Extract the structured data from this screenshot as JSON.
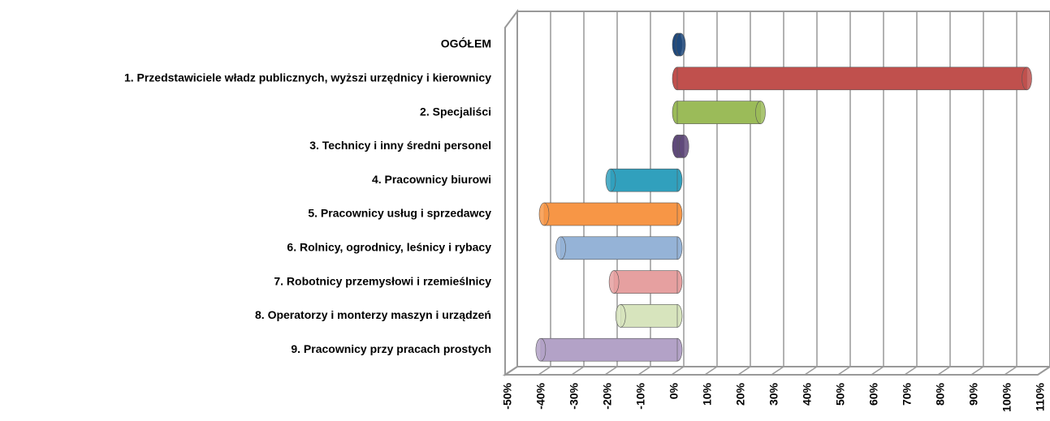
{
  "chart_data": {
    "type": "bar",
    "orientation": "horizontal",
    "categories": [
      "OGÓŁEM",
      "1. Przedstawiciele władz publicznych, wyższi urzędnicy i kierownicy",
      "2. Specjaliści ",
      "3. Technicy i inny średni personel",
      "4. Pracownicy biurowi",
      "5. Pracownicy usług i sprzedawcy",
      "6. Rolnicy, ogrodnicy, leśnicy i rybacy",
      "7. Robotnicy przemysłowi i rzemieślnicy",
      "8. Operatorzy i monterzy maszyn i urządzeń",
      "9. Pracownicy przy pracach prostych"
    ],
    "values": [
      1,
      105,
      25,
      2,
      -20,
      -40,
      -35,
      -19,
      -17,
      -41
    ],
    "colors": [
      "#1f497d",
      "#c0504d",
      "#9bbb59",
      "#604a7b",
      "#31a0bd",
      "#f79646",
      "#95b3d7",
      "#e6a0a0",
      "#d7e4bd",
      "#b3a2c7"
    ],
    "xlim": [
      -50,
      110
    ],
    "xticks": [
      {
        "value": -50,
        "label": "-50%"
      },
      {
        "value": -40,
        "label": "-40%"
      },
      {
        "value": -30,
        "label": "-30%"
      },
      {
        "value": -20,
        "label": "-20%"
      },
      {
        "value": -10,
        "label": "-10%"
      },
      {
        "value": 0,
        "label": "0%"
      },
      {
        "value": 10,
        "label": "10%"
      },
      {
        "value": 20,
        "label": "20%"
      },
      {
        "value": 30,
        "label": "30%"
      },
      {
        "value": 40,
        "label": "40%"
      },
      {
        "value": 50,
        "label": "50%"
      },
      {
        "value": 60,
        "label": "60%"
      },
      {
        "value": 70,
        "label": "70%"
      },
      {
        "value": 80,
        "label": "80%"
      },
      {
        "value": 90,
        "label": "90%"
      },
      {
        "value": 100,
        "label": "100%"
      },
      {
        "value": 110,
        "label": "110%"
      }
    ],
    "grid": true
  }
}
